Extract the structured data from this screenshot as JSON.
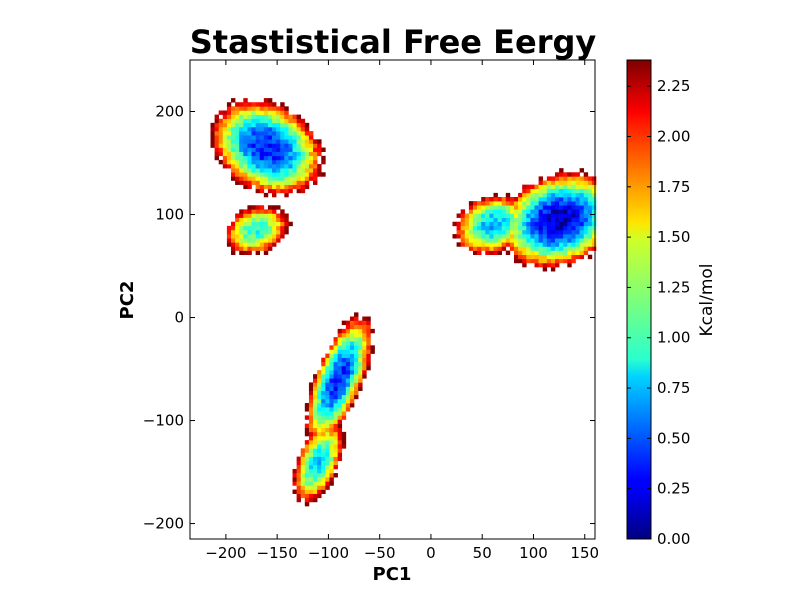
{
  "chart_data": {
    "type": "heatmap",
    "title": "Stastistical Free Eergy",
    "xlabel": "PC1",
    "ylabel": "PC2",
    "xlim": [
      -235,
      160
    ],
    "ylim": [
      -215,
      250
    ],
    "x_ticks": [
      -200,
      -150,
      -100,
      -50,
      0,
      50,
      100,
      150
    ],
    "x_tick_labels": [
      "−200",
      "−150",
      "−100",
      "−50",
      "0",
      "50",
      "100",
      "150"
    ],
    "y_ticks": [
      -200,
      -100,
      0,
      100,
      200
    ],
    "y_tick_labels": [
      "−200",
      "−100",
      "0",
      "100",
      "200"
    ],
    "colorbar": {
      "label": "Kcal/mol",
      "colormap": "jet",
      "range": [
        0,
        2.38
      ],
      "ticks": [
        0,
        0.25,
        0.5,
        0.75,
        1.0,
        1.25,
        1.5,
        1.75,
        2.0,
        2.25
      ],
      "tick_labels": [
        "0.00",
        "0.25",
        "0.50",
        "0.75",
        "1.00",
        "1.25",
        "1.50",
        "1.75",
        "2.00",
        "2.25"
      ]
    },
    "basins": [
      {
        "center": [
          -160,
          165
        ],
        "spread": [
          22,
          30
        ],
        "angle_deg": 60,
        "min_energy": 0.3
      },
      {
        "center": [
          -170,
          85
        ],
        "spread": [
          20,
          14
        ],
        "angle_deg": 20,
        "min_energy": 0.95
      },
      {
        "center": [
          60,
          90
        ],
        "spread": [
          22,
          16
        ],
        "angle_deg": 20,
        "min_energy": 0.7
      },
      {
        "center": [
          125,
          95
        ],
        "spread": [
          30,
          22
        ],
        "angle_deg": 20,
        "min_energy": 0.12
      },
      {
        "center": [
          -90,
          -60
        ],
        "spread": [
          35,
          12
        ],
        "angle_deg": 68,
        "min_energy": 0.35
      },
      {
        "center": [
          -110,
          -140
        ],
        "spread": [
          25,
          12
        ],
        "angle_deg": 68,
        "min_energy": 0.8
      }
    ]
  }
}
